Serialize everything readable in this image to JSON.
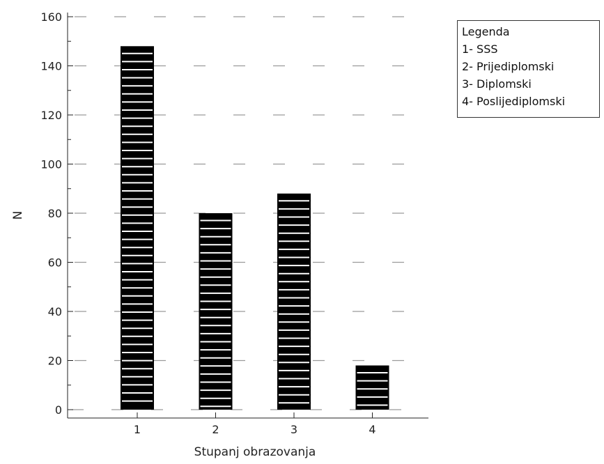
{
  "chart_data": {
    "type": "bar",
    "categories": [
      "1",
      "2",
      "3",
      "4"
    ],
    "values": [
      148,
      80,
      88,
      18
    ],
    "title": "",
    "xlabel": "Stupanj obrazovanja",
    "ylabel": "N",
    "ylim": [
      0,
      160
    ],
    "yticks": [
      0,
      20,
      40,
      60,
      80,
      100,
      120,
      140,
      160
    ],
    "grid": "horizontal dashed",
    "legend": {
      "title": "Legenda",
      "items": [
        "1- SSS",
        "2- Prijediplomski",
        "3- Diplomski",
        "4- Poslijediplomski"
      ],
      "placement": "top-right outside"
    },
    "bar_fill": "#000000",
    "bar_stripe": "#ffffff"
  }
}
